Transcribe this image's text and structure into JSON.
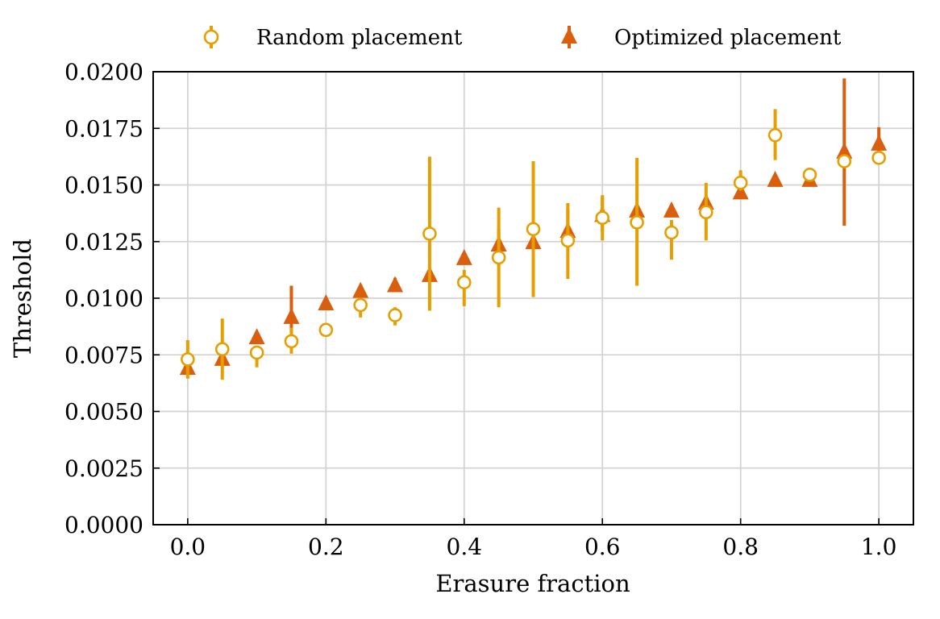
{
  "chart_data": {
    "type": "scatter",
    "title": "",
    "xlabel": "Erasure fraction",
    "ylabel": "Threshold",
    "xlim": [
      -0.05,
      1.05
    ],
    "ylim": [
      0,
      0.02
    ],
    "xticks": [
      0.0,
      0.2,
      0.4,
      0.6,
      0.8,
      1.0
    ],
    "xtick_labels": [
      "0.0",
      "0.2",
      "0.4",
      "0.6",
      "0.8",
      "1.0"
    ],
    "yticks": [
      0,
      0.0025,
      0.005,
      0.0075,
      0.01,
      0.0125,
      0.015,
      0.0175,
      0.02
    ],
    "ytick_labels": [
      "0.0000",
      "0.0025",
      "0.0050",
      "0.0075",
      "0.0100",
      "0.0125",
      "0.0150",
      "0.0175",
      "0.0200"
    ],
    "grid": true,
    "legend_position": "top, above plot",
    "series": [
      {
        "name": "Random placement",
        "marker": "open-circle",
        "color": "#E69F00",
        "points": [
          {
            "x": 0.0,
            "y": 0.0073,
            "err_low": 0.00645,
            "err_high": 0.00815
          },
          {
            "x": 0.05,
            "y": 0.00775,
            "err_low": 0.0064,
            "err_high": 0.0091
          },
          {
            "x": 0.1,
            "y": 0.0076,
            "err_low": 0.00695,
            "err_high": 0.0079
          },
          {
            "x": 0.15,
            "y": 0.0081,
            "err_low": 0.00755,
            "err_high": 0.0087
          },
          {
            "x": 0.2,
            "y": 0.0086,
            "err_low": 0.0084,
            "err_high": 0.0088
          },
          {
            "x": 0.25,
            "y": 0.0097,
            "err_low": 0.00915,
            "err_high": 0.01
          },
          {
            "x": 0.3,
            "y": 0.00925,
            "err_low": 0.0088,
            "err_high": 0.0096
          },
          {
            "x": 0.35,
            "y": 0.01285,
            "err_low": 0.00945,
            "err_high": 0.01625
          },
          {
            "x": 0.4,
            "y": 0.0107,
            "err_low": 0.00965,
            "err_high": 0.01125
          },
          {
            "x": 0.45,
            "y": 0.0118,
            "err_low": 0.0096,
            "err_high": 0.014
          },
          {
            "x": 0.5,
            "y": 0.01305,
            "err_low": 0.01005,
            "err_high": 0.01605
          },
          {
            "x": 0.55,
            "y": 0.01255,
            "err_low": 0.01085,
            "err_high": 0.0142
          },
          {
            "x": 0.6,
            "y": 0.01355,
            "err_low": 0.01255,
            "err_high": 0.01455
          },
          {
            "x": 0.65,
            "y": 0.01335,
            "err_low": 0.01055,
            "err_high": 0.0162
          },
          {
            "x": 0.7,
            "y": 0.0129,
            "err_low": 0.0117,
            "err_high": 0.01345
          },
          {
            "x": 0.75,
            "y": 0.0138,
            "err_low": 0.01255,
            "err_high": 0.0151
          },
          {
            "x": 0.8,
            "y": 0.0151,
            "err_low": 0.01475,
            "err_high": 0.01565
          },
          {
            "x": 0.85,
            "y": 0.0172,
            "err_low": 0.0161,
            "err_high": 0.01835
          },
          {
            "x": 0.9,
            "y": 0.01545,
            "err_low": 0.0153,
            "err_high": 0.01565
          },
          {
            "x": 0.95,
            "y": 0.01605,
            "err_low": 0.0158,
            "err_high": 0.01635
          },
          {
            "x": 1.0,
            "y": 0.0162,
            "err_low": 0.016,
            "err_high": 0.01645
          }
        ]
      },
      {
        "name": "Optimized placement",
        "marker": "filled-triangle",
        "color": "#D95F0E",
        "points": [
          {
            "x": 0.0,
            "y": 0.0069,
            "err_low": 0.00665,
            "err_high": 0.00715
          },
          {
            "x": 0.05,
            "y": 0.0073,
            "err_low": 0.0071,
            "err_high": 0.0075
          },
          {
            "x": 0.1,
            "y": 0.00825,
            "err_low": 0.00815,
            "err_high": 0.0084
          },
          {
            "x": 0.15,
            "y": 0.00915,
            "err_low": 0.00775,
            "err_high": 0.01055
          },
          {
            "x": 0.2,
            "y": 0.00975,
            "err_low": 0.00965,
            "err_high": 0.0099
          },
          {
            "x": 0.25,
            "y": 0.0103,
            "err_low": 0.0102,
            "err_high": 0.01045
          },
          {
            "x": 0.3,
            "y": 0.01055,
            "err_low": 0.0103,
            "err_high": 0.0109
          },
          {
            "x": 0.35,
            "y": 0.011,
            "err_low": 0.0109,
            "err_high": 0.0111
          },
          {
            "x": 0.4,
            "y": 0.01175,
            "err_low": 0.01165,
            "err_high": 0.01185
          },
          {
            "x": 0.45,
            "y": 0.01235,
            "err_low": 0.01145,
            "err_high": 0.01305
          },
          {
            "x": 0.5,
            "y": 0.01245,
            "err_low": 0.01235,
            "err_high": 0.01255
          },
          {
            "x": 0.55,
            "y": 0.01295,
            "err_low": 0.01235,
            "err_high": 0.01395
          },
          {
            "x": 0.6,
            "y": 0.01365,
            "err_low": 0.01295,
            "err_high": 0.01445
          },
          {
            "x": 0.65,
            "y": 0.01385,
            "err_low": 0.0137,
            "err_high": 0.014
          },
          {
            "x": 0.7,
            "y": 0.01385,
            "err_low": 0.0137,
            "err_high": 0.014
          },
          {
            "x": 0.75,
            "y": 0.0142,
            "err_low": 0.01405,
            "err_high": 0.01435
          },
          {
            "x": 0.8,
            "y": 0.01465,
            "err_low": 0.0145,
            "err_high": 0.0148
          },
          {
            "x": 0.85,
            "y": 0.0152,
            "err_low": 0.01505,
            "err_high": 0.01535
          },
          {
            "x": 0.9,
            "y": 0.0152,
            "err_low": 0.01505,
            "err_high": 0.01535
          },
          {
            "x": 0.95,
            "y": 0.01645,
            "err_low": 0.0132,
            "err_high": 0.0197
          },
          {
            "x": 1.0,
            "y": 0.0168,
            "err_low": 0.01615,
            "err_high": 0.01755
          }
        ]
      }
    ]
  }
}
